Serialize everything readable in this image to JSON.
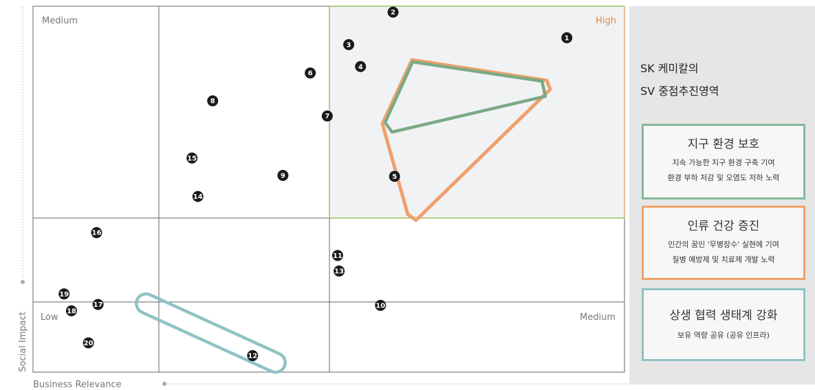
{
  "quadrant_labels": {
    "top_left": "Medium",
    "top_right": "High",
    "bottom_left": "Low",
    "bottom_right": "Medium"
  },
  "axes": {
    "y_label": "Social Impact",
    "x_label": "Business Relevance"
  },
  "points": [
    {
      "id": "1",
      "x": 7.22,
      "y": 7.31
    },
    {
      "id": "2",
      "x": 4.87,
      "y": 7.87
    },
    {
      "id": "3",
      "x": 4.27,
      "y": 7.16
    },
    {
      "id": "4",
      "x": 4.43,
      "y": 6.68
    },
    {
      "id": "5",
      "x": 4.89,
      "y": 4.28
    },
    {
      "id": "6",
      "x": 3.75,
      "y": 6.54
    },
    {
      "id": "7",
      "x": 3.98,
      "y": 5.6
    },
    {
      "id": "8",
      "x": 2.43,
      "y": 5.93
    },
    {
      "id": "9",
      "x": 3.38,
      "y": 4.3
    },
    {
      "id": "10",
      "x": 4.7,
      "y": 1.46
    },
    {
      "id": "11",
      "x": 4.12,
      "y": 2.55
    },
    {
      "id": "12",
      "x": 2.97,
      "y": 0.36
    },
    {
      "id": "13",
      "x": 4.14,
      "y": 2.21
    },
    {
      "id": "14",
      "x": 2.23,
      "y": 3.84
    },
    {
      "id": "15",
      "x": 2.15,
      "y": 4.68
    },
    {
      "id": "16",
      "x": 0.86,
      "y": 3.05
    },
    {
      "id": "17",
      "x": 0.88,
      "y": 1.48
    },
    {
      "id": "18",
      "x": 0.52,
      "y": 1.34
    },
    {
      "id": "19",
      "x": 0.42,
      "y": 1.71
    },
    {
      "id": "20",
      "x": 0.75,
      "y": 0.64
    }
  ],
  "groups": {
    "environment_color": "#7aaa85",
    "health_color": "#f0a06a",
    "cooperation_color": "#8fc2c4",
    "high_zone_border": "#9cc25b",
    "high_zone_fill": "#f1f2f4"
  },
  "sidebar": {
    "title_line1": "SK 케미칼의",
    "title_line2": "SV 중점추진영역",
    "environment": {
      "title": "지구 환경 보호",
      "desc1": "지속 가능한 지구 환경 구축 기여",
      "desc2": "환경 부하 저감 및 오염도 저하 노력"
    },
    "health": {
      "title": "인류 건강 증진",
      "desc1": "인간의 꿈인 '무병장수' 실현에 기여",
      "desc2": "질병 예방제 및 치료제 개발 노력"
    },
    "cooperation": {
      "title": "상생 협력 생태계 강화",
      "desc1": "보유 역량 공유 (공유 인프라)"
    }
  }
}
